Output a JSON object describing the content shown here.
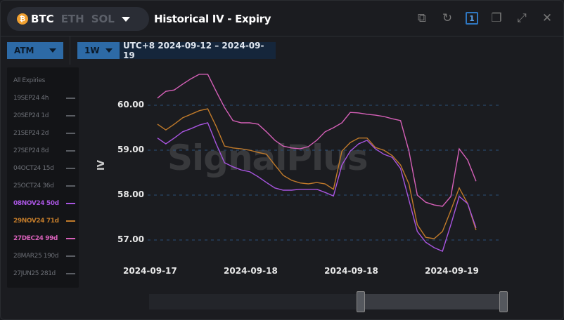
{
  "header": {
    "coins": [
      {
        "label": "BTC",
        "active": true
      },
      {
        "label": "ETH",
        "active": false
      },
      {
        "label": "SOL",
        "active": false
      }
    ],
    "title": "Historical IV - Expiry",
    "tools": [
      "external-link-icon",
      "refresh-icon",
      "one-icon",
      "copy-icon",
      "expand-icon",
      "close-icon"
    ],
    "one_label": "1"
  },
  "filters": {
    "moneyness": "ATM",
    "period": "1W",
    "range": "UTC+8 2024-09-12 – 2024-09-19"
  },
  "sidebar": {
    "items": [
      {
        "label": "All Expiries",
        "dash": false
      },
      {
        "label": "19SEP24 4h",
        "dash": true
      },
      {
        "label": "20SEP24 1d",
        "dash": true
      },
      {
        "label": "21SEP24 2d",
        "dash": true
      },
      {
        "label": "27SEP24 8d",
        "dash": true
      },
      {
        "label": "04OCT24 15d",
        "dash": true
      },
      {
        "label": "25OCT24 36d",
        "dash": true
      },
      {
        "label": "08NOV24 50d",
        "dash": true,
        "color": "#a855e0"
      },
      {
        "label": "29NOV24 71d",
        "dash": true,
        "color": "#c07a2a"
      },
      {
        "label": "27DEC24 99d",
        "dash": true,
        "color": "#d660b8"
      },
      {
        "label": "28MAR25 190d",
        "dash": true
      },
      {
        "label": "27JUN25 281d",
        "dash": true
      }
    ]
  },
  "watermark": "SignalPlus",
  "chart_data": {
    "type": "line",
    "ylabel": "IV",
    "ylim": [
      56.5,
      60.9
    ],
    "yticks": [
      "57.00",
      "58.00",
      "59.00",
      "60.00"
    ],
    "grid": "horizontal dashed",
    "xticks": [
      {
        "t": "2024-09-17 12:00",
        "label": "2024-09-17"
      },
      {
        "t": "2024-09-18 00:00",
        "label": "2024-09-18"
      },
      {
        "t": "2024-09-18 12:00",
        "label": "2024-09-18"
      },
      {
        "t": "2024-09-19 00:00",
        "label": "2024-09-19"
      }
    ],
    "x": [
      "2024-09-17 13:00",
      "2024-09-17 14:00",
      "2024-09-17 15:00",
      "2024-09-17 16:00",
      "2024-09-17 17:00",
      "2024-09-17 18:00",
      "2024-09-17 19:00",
      "2024-09-17 20:00",
      "2024-09-17 21:00",
      "2024-09-17 22:00",
      "2024-09-17 23:00",
      "2024-09-18 00:00",
      "2024-09-18 01:00",
      "2024-09-18 02:00",
      "2024-09-18 03:00",
      "2024-09-18 04:00",
      "2024-09-18 05:00",
      "2024-09-18 06:00",
      "2024-09-18 07:00",
      "2024-09-18 08:00",
      "2024-09-18 09:00",
      "2024-09-18 10:00",
      "2024-09-18 11:00",
      "2024-09-18 12:00",
      "2024-09-18 13:00",
      "2024-09-18 14:00",
      "2024-09-18 15:00",
      "2024-09-18 16:00",
      "2024-09-18 17:00",
      "2024-09-18 18:00",
      "2024-09-18 19:00",
      "2024-09-18 20:00",
      "2024-09-18 21:00",
      "2024-09-18 22:00",
      "2024-09-18 23:00",
      "2024-09-19 00:00",
      "2024-09-19 01:00",
      "2024-09-19 02:00",
      "2024-09-19 03:00"
    ],
    "series": [
      {
        "name": "27DEC24 99d",
        "color": "#d660b8",
        "values": [
          60.16,
          60.31,
          60.34,
          60.47,
          60.59,
          60.69,
          60.69,
          60.31,
          59.95,
          59.66,
          59.61,
          59.61,
          59.58,
          59.41,
          59.22,
          59.09,
          59.05,
          59.03,
          59.08,
          59.22,
          59.41,
          59.5,
          59.61,
          59.84,
          59.83,
          59.8,
          59.78,
          59.75,
          59.7,
          59.66,
          58.98,
          58.0,
          57.84,
          57.78,
          57.75,
          57.97,
          59.03,
          58.78,
          58.31
        ]
      },
      {
        "name": "29NOV24 71d",
        "color": "#c07a2a",
        "values": [
          59.58,
          59.45,
          59.58,
          59.72,
          59.8,
          59.88,
          59.92,
          59.53,
          59.09,
          59.05,
          59.03,
          59.0,
          58.95,
          58.91,
          58.67,
          58.44,
          58.33,
          58.27,
          58.25,
          58.28,
          58.25,
          58.13,
          58.98,
          59.17,
          59.27,
          59.27,
          59.06,
          59.0,
          58.88,
          58.67,
          58.25,
          57.34,
          57.06,
          57.03,
          57.19,
          57.66,
          58.16,
          57.81,
          57.22
        ]
      },
      {
        "name": "08NOV24 50d",
        "color": "#a855e0",
        "values": [
          59.27,
          59.14,
          59.27,
          59.41,
          59.48,
          59.56,
          59.61,
          59.14,
          58.72,
          58.63,
          58.56,
          58.52,
          58.41,
          58.28,
          58.16,
          58.11,
          58.11,
          58.13,
          58.13,
          58.13,
          58.06,
          57.98,
          58.67,
          58.98,
          59.14,
          59.22,
          59.03,
          58.91,
          58.84,
          58.59,
          57.89,
          57.19,
          56.95,
          56.83,
          56.75,
          57.34,
          57.97,
          57.81,
          57.27
        ]
      }
    ]
  }
}
